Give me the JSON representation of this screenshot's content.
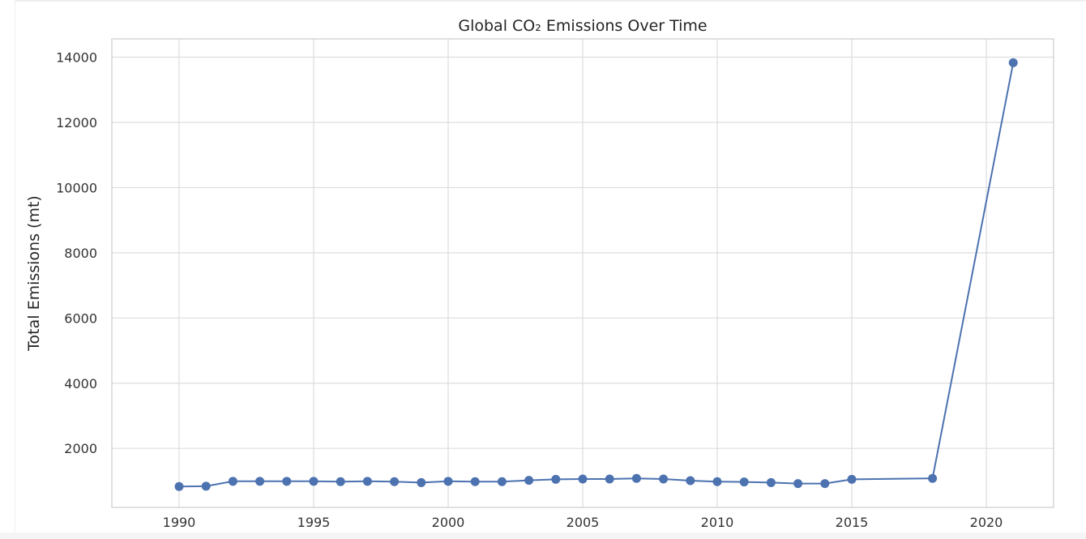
{
  "chart_data": {
    "type": "line",
    "title": "Global CO₂ Emissions Over Time",
    "xlabel": "",
    "ylabel": "Total Emissions (mt)",
    "xlim": [
      1987.5,
      2022.5
    ],
    "ylim": [
      190,
      14560
    ],
    "xticks": [
      1990,
      1995,
      2000,
      2005,
      2010,
      2015,
      2020
    ],
    "yticks": [
      2000,
      4000,
      6000,
      8000,
      10000,
      12000,
      14000
    ],
    "grid": true,
    "color": "#4c72b0",
    "series": [
      {
        "x": [
          1990,
          1991,
          1992,
          1993,
          1994,
          1995,
          1996,
          1997,
          1998,
          1999,
          2000,
          2001,
          2002,
          2003,
          2004,
          2005,
          2006,
          2007,
          2008,
          2009,
          2010,
          2011,
          2012,
          2013,
          2014,
          2015,
          2018,
          2021
        ],
        "y": [
          830,
          840,
          990,
          990,
          990,
          990,
          980,
          990,
          980,
          950,
          990,
          980,
          980,
          1020,
          1050,
          1060,
          1060,
          1080,
          1060,
          1010,
          980,
          970,
          950,
          920,
          920,
          1050,
          1080,
          13830
        ]
      }
    ]
  }
}
